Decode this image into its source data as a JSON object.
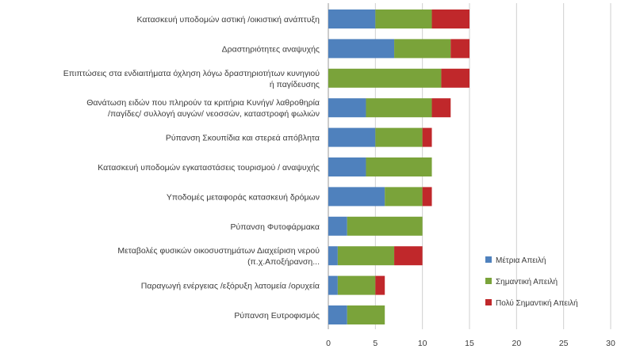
{
  "chart_data": {
    "type": "bar",
    "orientation": "horizontal",
    "stacked": true,
    "title": "",
    "xlabel": "",
    "ylabel": "",
    "xlim": [
      0,
      30
    ],
    "x_ticks": [
      0,
      5,
      10,
      15,
      20,
      25,
      30
    ],
    "grid": "vertical major gridlines",
    "legend_position": "bottom-right",
    "categories": [
      [
        "Κατασκευή υποδομών αστική /οικιστική ανάπτυξη"
      ],
      [
        "Δραστηριότητες αναψυχής"
      ],
      [
        "Επιπτώσεις στα ενδιαιτήματα όχληση λόγω δραστηριοτήτων κυνηγιού",
        "ή παγίδευσης"
      ],
      [
        "Θανάτωση ειδών που πληρούν τα κριτήρια Κυνήγι/ λαθροθηρία",
        "/παγίδες/ συλλογή αυγών/ νεοσσών, καταστροφή φωλιών"
      ],
      [
        "Ρύπανση Σκουπίδια και στερεά απόβλητα"
      ],
      [
        "Κατασκευή υποδομών εγκαταστάσεις τουρισμού / αναψυχής"
      ],
      [
        "Υποδομές μεταφοράς κατασκευή δρόμων"
      ],
      [
        "Ρύπανση Φυτοφάρμακα"
      ],
      [
        "Μεταβολές φυσικών οικοσυστημάτων Διαχείριση νερού",
        "(π.χ.Αποξήρανση..."
      ],
      [
        "Παραγωγή ενέργειας /εξόρυξη λατομεία /ορυχεία"
      ],
      [
        "Ρύπανση Ευτροφισμός"
      ]
    ],
    "series": [
      {
        "name": "Μέτρια Απειλή",
        "color": "#4f81bd",
        "values": [
          5,
          7,
          0,
          4,
          5,
          4,
          6,
          2,
          1,
          1,
          2
        ]
      },
      {
        "name": "Σημαντική Απειλή",
        "color": "#7aa33a",
        "values": [
          6,
          6,
          12,
          7,
          5,
          7,
          4,
          8,
          6,
          4,
          4
        ]
      },
      {
        "name": "Πολύ Σημαντική Απειλή",
        "color": "#c0282b",
        "values": [
          4,
          2,
          3,
          2,
          1,
          0,
          1,
          0,
          3,
          1,
          0
        ]
      }
    ]
  }
}
